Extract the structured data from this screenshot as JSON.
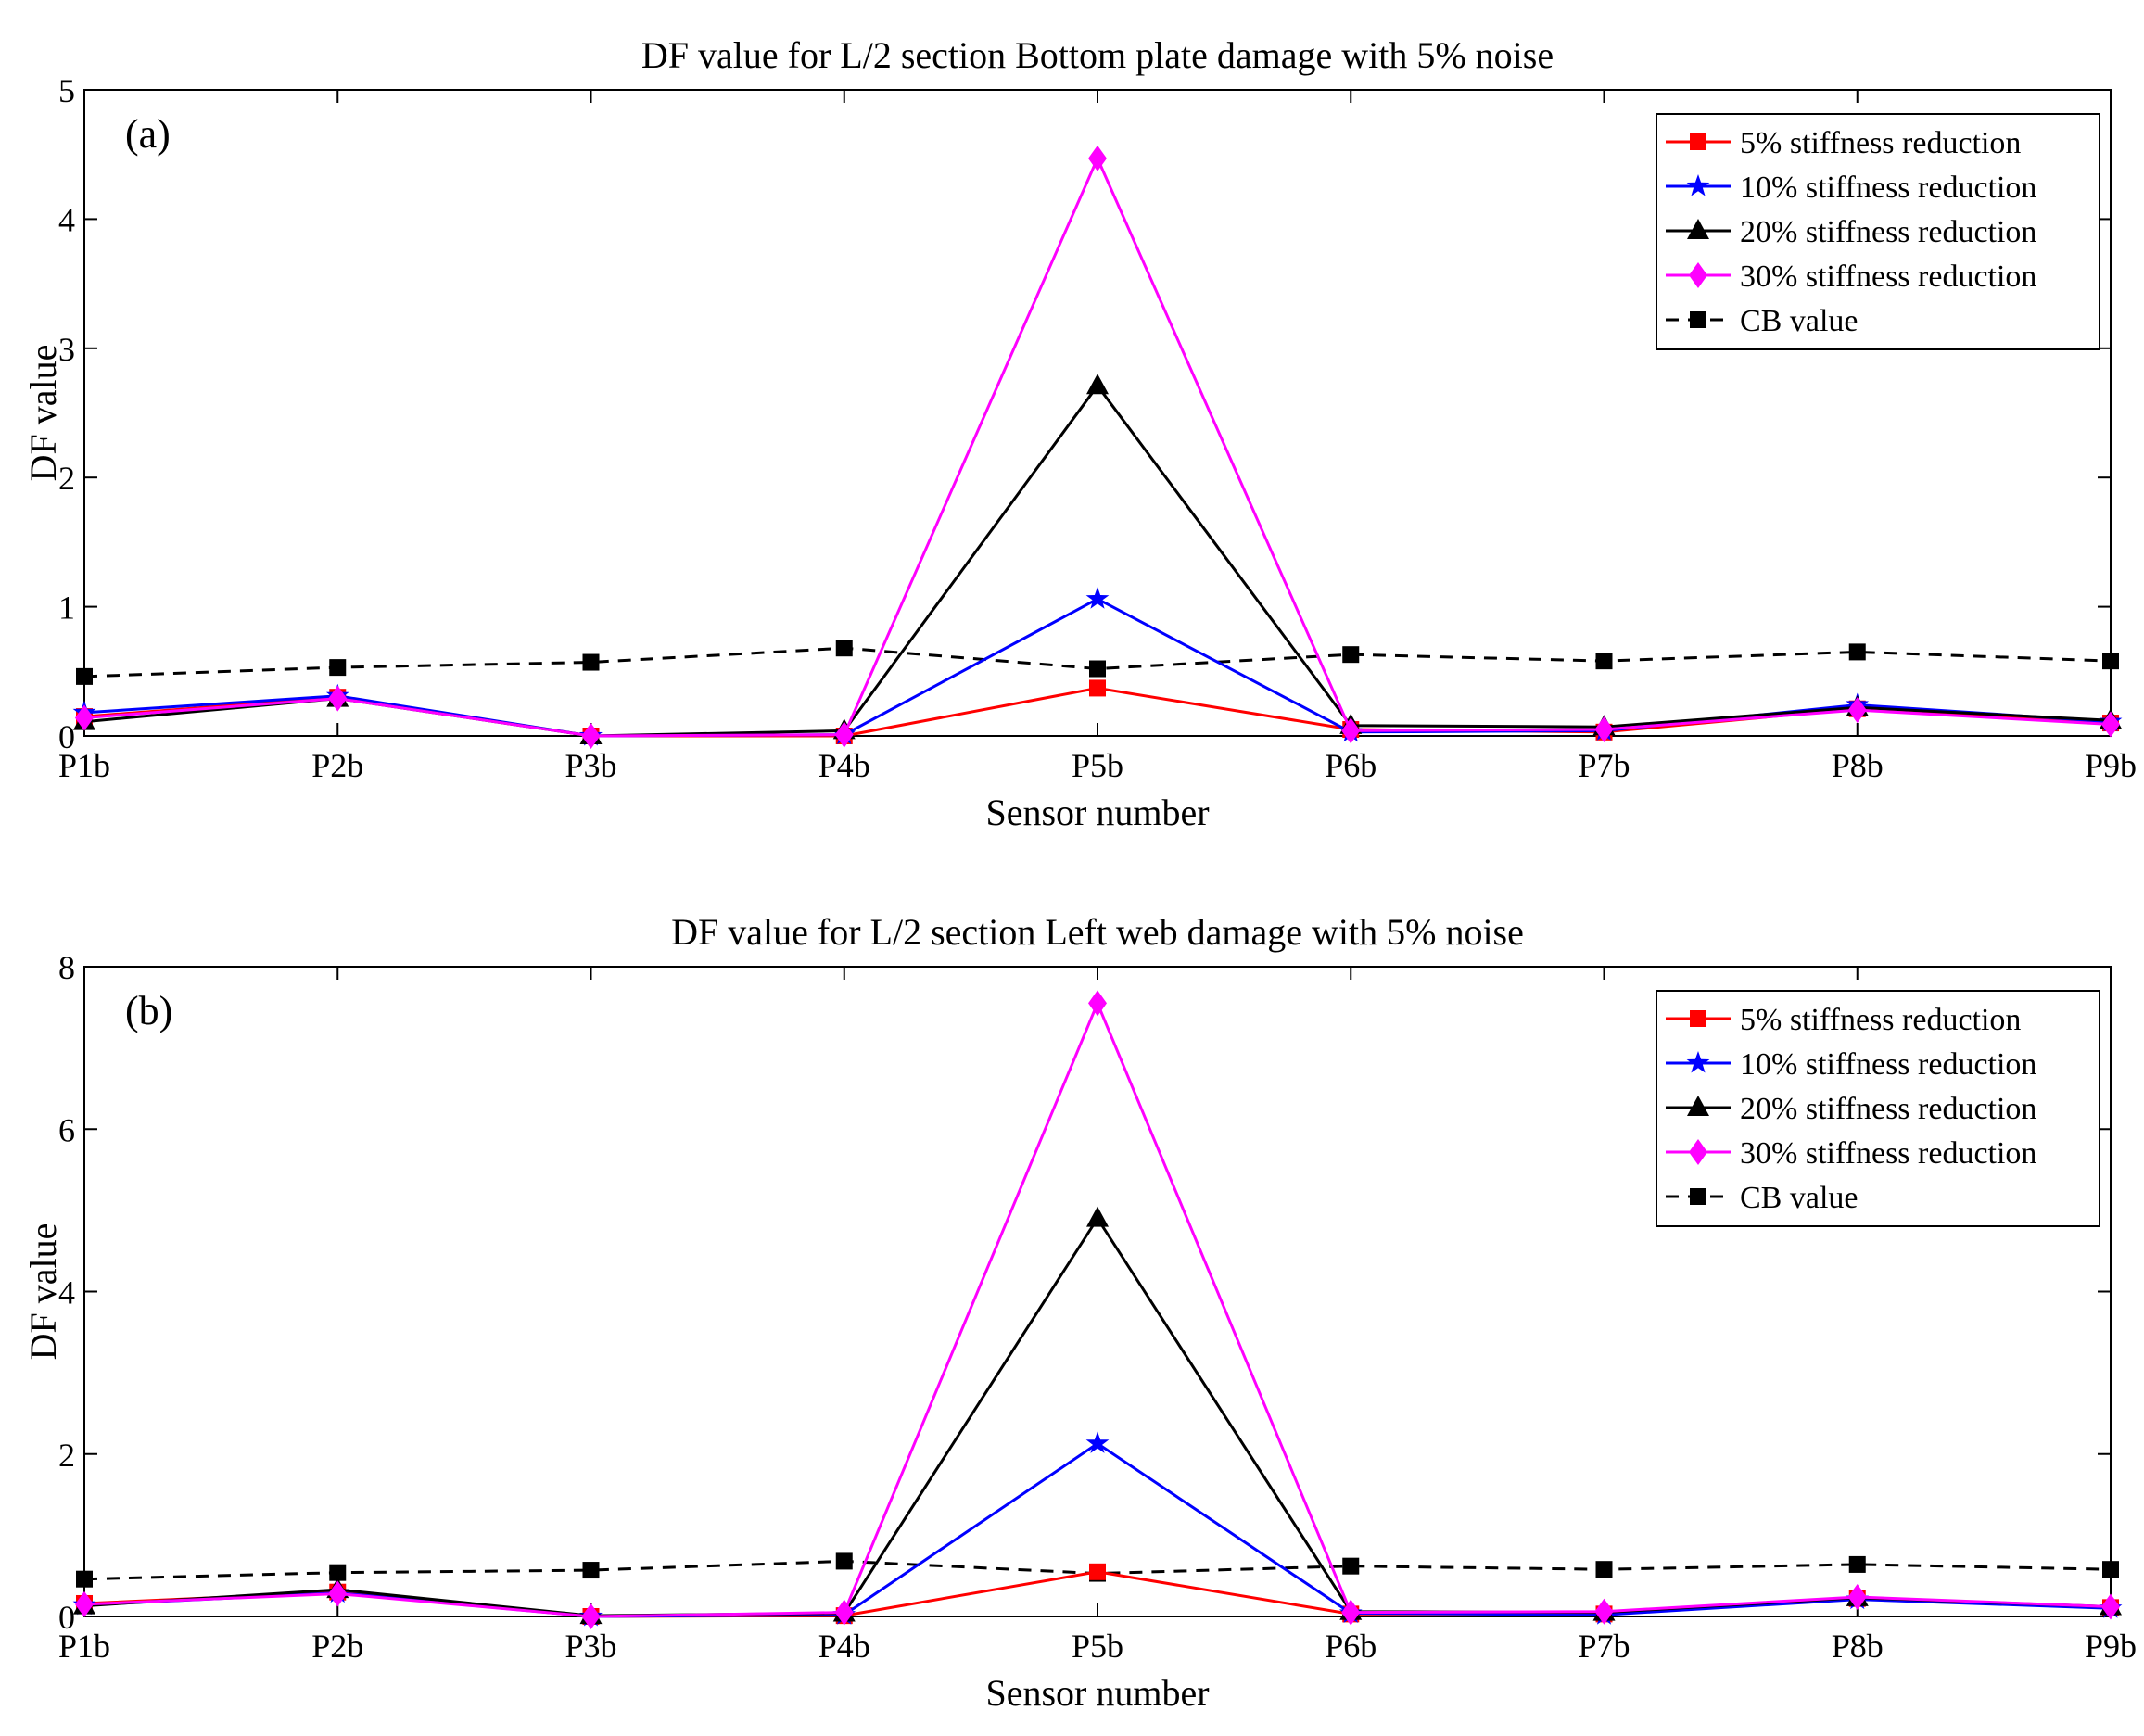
{
  "figure": {
    "background": "#ffffff"
  },
  "chart_data": [
    {
      "type": "line",
      "panel_label": "(a)",
      "title": "DF value  for L/2 section Bottom plate damage with 5% noise",
      "xlabel": "Sensor number",
      "ylabel": "DF value",
      "categories": [
        "P1b",
        "P2b",
        "P3b",
        "P4b",
        "P5b",
        "P6b",
        "P7b",
        "P8b",
        "P9b"
      ],
      "ylim": [
        0,
        5
      ],
      "yticks": [
        0,
        1,
        2,
        3,
        4,
        5
      ],
      "grid": false,
      "legend_position": "top-right",
      "series": [
        {
          "name": "5% stiffness reduction",
          "color": "#ff0000",
          "marker": "square",
          "dash": "solid",
          "values": [
            0.15,
            0.3,
            0.0,
            0.0,
            0.37,
            0.05,
            0.03,
            0.21,
            0.1
          ]
        },
        {
          "name": "10% stiffness reduction",
          "color": "#0000ff",
          "marker": "star",
          "dash": "solid",
          "values": [
            0.18,
            0.31,
            0.0,
            0.01,
            1.06,
            0.03,
            0.04,
            0.24,
            0.11
          ]
        },
        {
          "name": "20% stiffness reduction",
          "color": "#000000",
          "marker": "triangle",
          "dash": "solid",
          "values": [
            0.11,
            0.29,
            0.0,
            0.04,
            2.71,
            0.08,
            0.07,
            0.22,
            0.12
          ]
        },
        {
          "name": "30% stiffness reduction",
          "color": "#ff00ff",
          "marker": "diamond",
          "dash": "solid",
          "values": [
            0.14,
            0.29,
            0.0,
            0.01,
            4.47,
            0.04,
            0.05,
            0.2,
            0.09
          ]
        },
        {
          "name": "CB value",
          "color": "#000000",
          "marker": "square",
          "dash": "dashed",
          "values": [
            0.46,
            0.53,
            0.57,
            0.68,
            0.52,
            0.63,
            0.58,
            0.65,
            0.58
          ]
        }
      ]
    },
    {
      "type": "line",
      "panel_label": "(b)",
      "title": "DF value  for L/2 section Left web damage with 5% noise",
      "xlabel": "Sensor number",
      "ylabel": "DF value",
      "categories": [
        "P1b",
        "P2b",
        "P3b",
        "P4b",
        "P5b",
        "P6b",
        "P7b",
        "P8b",
        "P9b"
      ],
      "ylim": [
        0,
        8
      ],
      "yticks": [
        0,
        2,
        4,
        6,
        8
      ],
      "grid": false,
      "legend_position": "top-right",
      "series": [
        {
          "name": "5% stiffness reduction",
          "color": "#ff0000",
          "marker": "square",
          "dash": "solid",
          "values": [
            0.16,
            0.3,
            0.0,
            0.01,
            0.55,
            0.03,
            0.03,
            0.22,
            0.11
          ]
        },
        {
          "name": "10% stiffness reduction",
          "color": "#0000ff",
          "marker": "star",
          "dash": "solid",
          "values": [
            0.14,
            0.29,
            0.0,
            0.02,
            2.13,
            0.04,
            0.02,
            0.21,
            0.1
          ]
        },
        {
          "name": "20% stiffness reduction",
          "color": "#000000",
          "marker": "triangle",
          "dash": "solid",
          "values": [
            0.13,
            0.33,
            0.01,
            0.04,
            4.9,
            0.06,
            0.05,
            0.23,
            0.12
          ]
        },
        {
          "name": "30% stiffness reduction",
          "color": "#ff00ff",
          "marker": "diamond",
          "dash": "solid",
          "values": [
            0.15,
            0.28,
            0.0,
            0.05,
            7.55,
            0.05,
            0.06,
            0.24,
            0.12
          ]
        },
        {
          "name": "CB value",
          "color": "#000000",
          "marker": "square",
          "dash": "dashed",
          "values": [
            0.46,
            0.54,
            0.57,
            0.68,
            0.53,
            0.62,
            0.58,
            0.64,
            0.58
          ]
        }
      ]
    }
  ]
}
